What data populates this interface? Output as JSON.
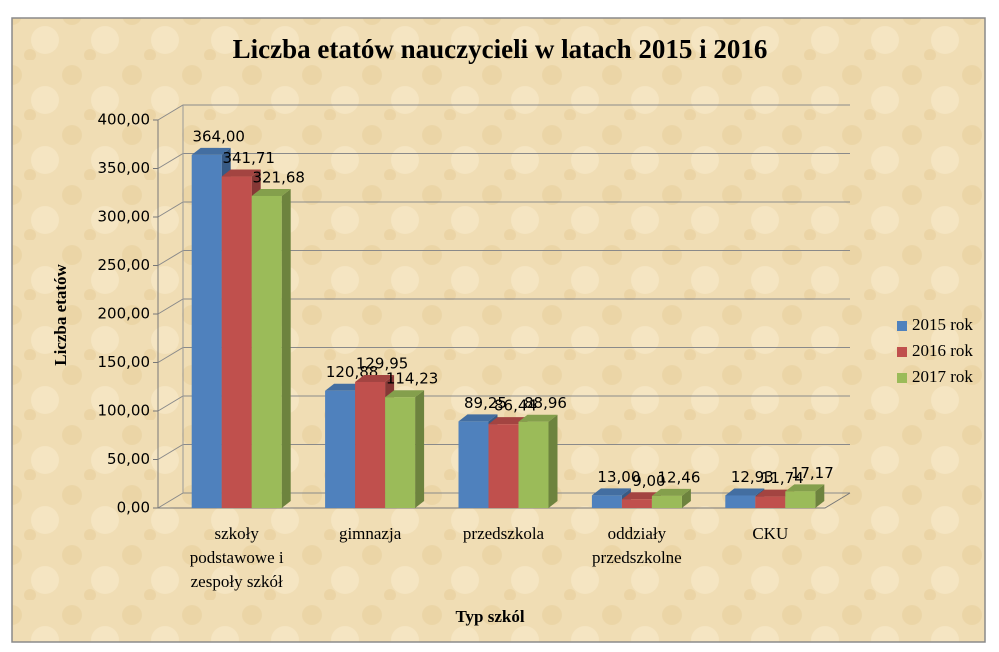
{
  "chart_data": {
    "type": "bar3d",
    "title": "Liczba etatów nauczycieli w latach 2015 i 2016",
    "y_label": "Liczba etatów",
    "x_label": "Typ szkól",
    "categories": [
      "szkoły podstawowe i zespoły szkół",
      "gimnazja",
      "przedszkola",
      "oddziały przedszkolne",
      "CKU"
    ],
    "series": [
      {
        "name": "2015 rok",
        "color": "#4f81bd",
        "values": [
          364,
          120.88,
          89.25,
          13,
          12.93
        ],
        "value_labels": [
          "364,00",
          "120,88",
          "89,25",
          "13,00",
          "12,93"
        ]
      },
      {
        "name": "2016 rok",
        "color": "#c0504d",
        "values": [
          341.71,
          129.95,
          86.44,
          9,
          11.74
        ],
        "value_labels": [
          "341,71",
          "129,95",
          "86,44",
          "9,00",
          "11,74"
        ]
      },
      {
        "name": "2017 rok",
        "color": "#9bbb59",
        "values": [
          321.68,
          114.23,
          88.96,
          12.46,
          17.17
        ],
        "value_labels": [
          "321,68",
          "114,23",
          "88,96",
          "12,46",
          "17,17"
        ]
      }
    ],
    "ylim": [
      0,
      400
    ],
    "yticks": [
      {
        "value": 0,
        "label": "0,00"
      },
      {
        "value": 50,
        "label": "50,00"
      },
      {
        "value": 100,
        "label": "100,00"
      },
      {
        "value": 150,
        "label": "150,00"
      },
      {
        "value": 200,
        "label": "200,00"
      },
      {
        "value": 250,
        "label": "250,00"
      },
      {
        "value": 300,
        "label": "300,00"
      },
      {
        "value": 350,
        "label": "350,00"
      },
      {
        "value": 400,
        "label": "400,00"
      }
    ],
    "grid": true,
    "legend": "right"
  }
}
